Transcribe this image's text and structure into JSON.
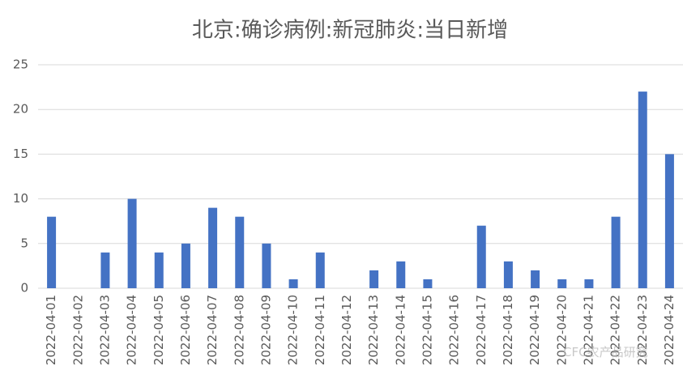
{
  "chart_data": {
    "type": "bar",
    "title": "北京:确诊病例:新冠肺炎:当日新增",
    "categories": [
      "2022-04-01",
      "2022-04-02",
      "2022-04-03",
      "2022-04-04",
      "2022-04-05",
      "2022-04-06",
      "2022-04-07",
      "2022-04-08",
      "2022-04-09",
      "2022-04-10",
      "2022-04-11",
      "2022-04-12",
      "2022-04-13",
      "2022-04-14",
      "2022-04-15",
      "2022-04-16",
      "2022-04-17",
      "2022-04-18",
      "2022-04-19",
      "2022-04-20",
      "2022-04-21",
      "2022-04-22",
      "2022-04-23",
      "2022-04-24"
    ],
    "values": [
      8,
      0,
      4,
      10,
      4,
      5,
      9,
      8,
      5,
      1,
      4,
      0,
      2,
      3,
      1,
      0,
      7,
      3,
      2,
      1,
      1,
      8,
      22,
      15
    ],
    "color": "#4472c4",
    "ylim": [
      0,
      25
    ],
    "yticks": [
      0,
      5,
      10,
      15,
      20,
      25
    ],
    "grid": true,
    "watermark": "CFC农产品研究"
  }
}
